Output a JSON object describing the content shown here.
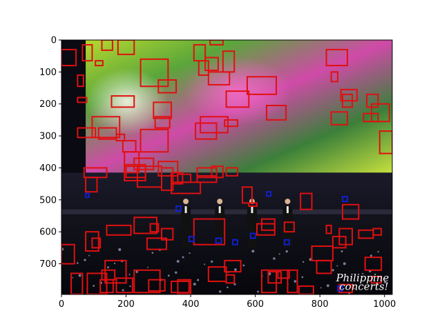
{
  "chart_data": {
    "type": "image-with-bounding-boxes",
    "title": "",
    "xlabel": "",
    "ylabel": "",
    "xlim": [
      0,
      1024
    ],
    "ylim": [
      796,
      0
    ],
    "x_ticks": [
      0,
      200,
      400,
      600,
      800,
      1000
    ],
    "y_ticks": [
      0,
      100,
      200,
      300,
      400,
      500,
      600,
      700
    ],
    "grid": false,
    "image_text": {
      "watermark_line1": "Philippine",
      "watermark_line2": "concerts!"
    },
    "colors": {
      "red_boxes": "#e01010",
      "blue_boxes": "#1020e0",
      "frame": "#000000"
    },
    "series": [
      {
        "color": "red",
        "boxes": [
          [
            0,
            30,
            45,
            80
          ],
          [
            65,
            15,
            95,
            65
          ],
          [
            125,
            0,
            158,
            32
          ],
          [
            175,
            0,
            225,
            45
          ],
          [
            105,
            65,
            128,
            80
          ],
          [
            50,
            110,
            68,
            145
          ],
          [
            50,
            180,
            78,
            195
          ],
          [
            155,
            175,
            225,
            210
          ],
          [
            50,
            275,
            105,
            305
          ],
          [
            95,
            240,
            180,
            305
          ],
          [
            115,
            275,
            170,
            310
          ],
          [
            170,
            295,
            195,
            315
          ],
          [
            245,
            60,
            330,
            145
          ],
          [
            300,
            125,
            355,
            165
          ],
          [
            410,
            15,
            445,
            65
          ],
          [
            445,
            55,
            485,
            95
          ],
          [
            425,
            65,
            455,
            110
          ],
          [
            455,
            100,
            520,
            140
          ],
          [
            460,
            0,
            500,
            15
          ],
          [
            500,
            35,
            535,
            100
          ],
          [
            575,
            115,
            665,
            170
          ],
          [
            635,
            205,
            695,
            250
          ],
          [
            510,
            160,
            580,
            210
          ],
          [
            505,
            250,
            545,
            270
          ],
          [
            820,
            30,
            885,
            80
          ],
          [
            835,
            100,
            855,
            130
          ],
          [
            865,
            155,
            915,
            190
          ],
          [
            870,
            170,
            900,
            210
          ],
          [
            945,
            170,
            980,
            210
          ],
          [
            960,
            200,
            1015,
            255
          ],
          [
            935,
            230,
            980,
            255
          ],
          [
            835,
            225,
            885,
            265
          ],
          [
            430,
            240,
            515,
            290
          ],
          [
            415,
            260,
            480,
            310
          ],
          [
            285,
            195,
            340,
            245
          ],
          [
            290,
            240,
            335,
            275
          ],
          [
            245,
            280,
            330,
            350
          ],
          [
            300,
            380,
            360,
            425
          ],
          [
            360,
            420,
            400,
            445
          ],
          [
            420,
            400,
            480,
            430
          ],
          [
            465,
            395,
            500,
            430
          ],
          [
            420,
            425,
            480,
            445
          ],
          [
            190,
            315,
            230,
            350
          ],
          [
            195,
            350,
            240,
            415
          ],
          [
            200,
            395,
            260,
            430
          ],
          [
            195,
            390,
            260,
            440
          ],
          [
            225,
            370,
            285,
            405
          ],
          [
            235,
            395,
            310,
            460
          ],
          [
            310,
            400,
            345,
            470
          ],
          [
            340,
            415,
            375,
            450
          ],
          [
            340,
            445,
            430,
            480
          ],
          [
            410,
            560,
            505,
            640
          ],
          [
            560,
            460,
            590,
            510
          ],
          [
            580,
            510,
            605,
            520
          ],
          [
            605,
            575,
            660,
            610
          ],
          [
            620,
            560,
            660,
            595
          ],
          [
            510,
            400,
            545,
            425
          ],
          [
            225,
            555,
            295,
            605
          ],
          [
            275,
            575,
            300,
            600
          ],
          [
            310,
            590,
            345,
            625
          ],
          [
            265,
            620,
            325,
            655
          ],
          [
            140,
            580,
            215,
            610
          ],
          [
            135,
            690,
            200,
            760
          ],
          [
            225,
            720,
            305,
            790
          ],
          [
            270,
            750,
            320,
            785
          ],
          [
            455,
            710,
            510,
            755
          ],
          [
            510,
            735,
            535,
            760
          ],
          [
            340,
            755,
            395,
            790
          ],
          [
            70,
            400,
            140,
            430
          ],
          [
            75,
            430,
            110,
            475
          ],
          [
            75,
            600,
            115,
            660
          ],
          [
            95,
            620,
            120,
            650
          ],
          [
            30,
            730,
            65,
            795
          ],
          [
            80,
            730,
            140,
            795
          ],
          [
            125,
            720,
            165,
            750
          ],
          [
            120,
            750,
            160,
            790
          ],
          [
            170,
            745,
            220,
            790
          ],
          [
            0,
            640,
            40,
            700
          ],
          [
            360,
            750,
            400,
            795
          ],
          [
            620,
            720,
            665,
            790
          ],
          [
            505,
            690,
            555,
            725
          ],
          [
            640,
            725,
            680,
            760
          ],
          [
            670,
            720,
            705,
            745
          ],
          [
            690,
            570,
            720,
            600
          ],
          [
            740,
            480,
            775,
            530
          ],
          [
            790,
            690,
            835,
            730
          ],
          [
            775,
            645,
            840,
            690
          ],
          [
            840,
            615,
            880,
            650
          ],
          [
            860,
            590,
            900,
            640
          ],
          [
            870,
            515,
            920,
            560
          ],
          [
            920,
            595,
            965,
            620
          ],
          [
            965,
            590,
            990,
            610
          ],
          [
            940,
            680,
            990,
            720
          ],
          [
            985,
            285,
            1024,
            355
          ],
          [
            820,
            580,
            835,
            605
          ],
          [
            700,
            720,
            730,
            790
          ],
          [
            735,
            770,
            780,
            795
          ],
          [
            860,
            765,
            900,
            790
          ],
          [
            960,
            740,
            990,
            760
          ]
        ]
      },
      {
        "color": "blue",
        "boxes": [
          [
            75,
            480,
            85,
            492
          ],
          [
            355,
            520,
            370,
            535
          ],
          [
            395,
            615,
            410,
            630
          ],
          [
            478,
            620,
            495,
            635
          ],
          [
            530,
            625,
            545,
            640
          ],
          [
            585,
            605,
            600,
            620
          ],
          [
            635,
            475,
            648,
            488
          ],
          [
            690,
            625,
            705,
            640
          ],
          [
            870,
            490,
            885,
            505
          ],
          [
            855,
            770,
            870,
            785
          ]
        ]
      }
    ]
  }
}
